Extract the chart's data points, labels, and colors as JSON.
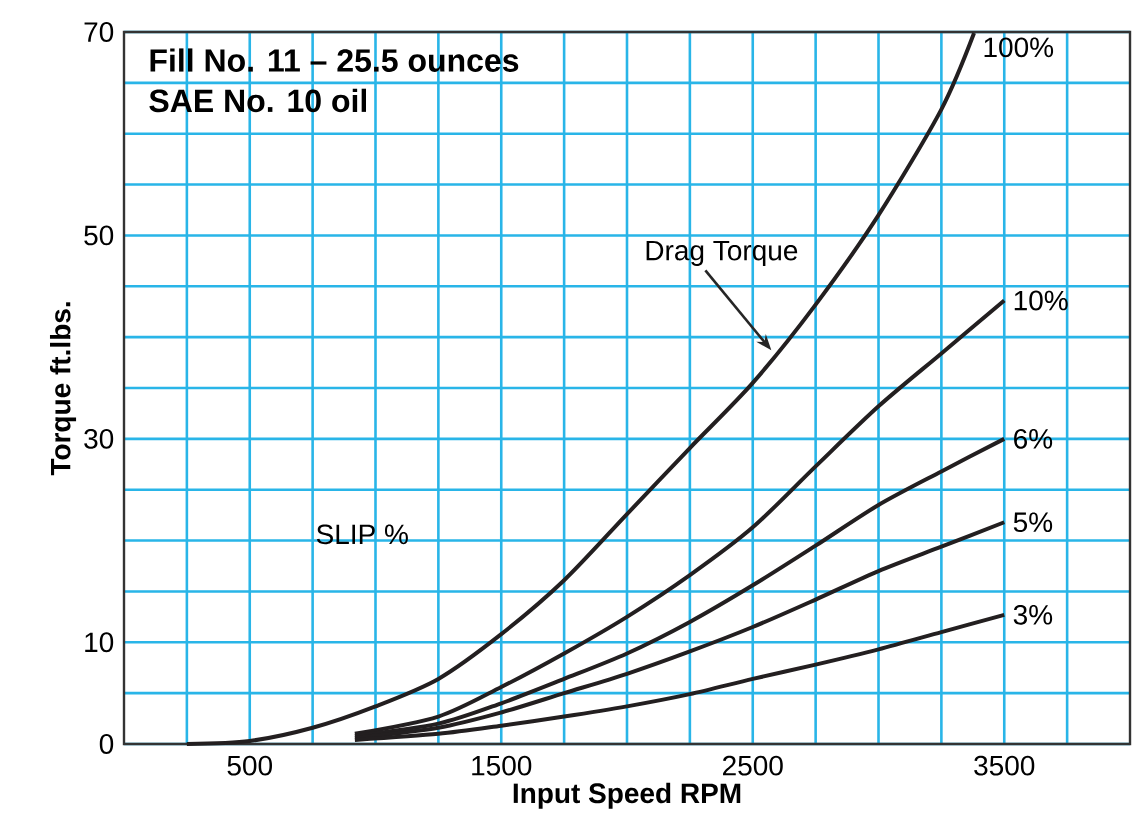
{
  "chart_data": {
    "type": "line",
    "title": "Fill No. 11 – 25.5 ounces",
    "subtitle": "SAE No. 10 oil",
    "xlabel": "Input Speed RPM",
    "ylabel": "Torque ft.lbs.",
    "xlim": [
      0,
      4000
    ],
    "ylim": [
      0,
      70
    ],
    "xticks": [
      {
        "value": 250,
        "label": null
      },
      500,
      {
        "value": 750,
        "label": null
      },
      {
        "value": 1000,
        "label": null
      },
      {
        "value": 1250,
        "label": null
      },
      1500,
      {
        "value": 1750,
        "label": null
      },
      {
        "value": 2000,
        "label": null
      },
      {
        "value": 2250,
        "label": null
      },
      2500,
      {
        "value": 2750,
        "label": null
      },
      {
        "value": 3000,
        "label": null
      },
      {
        "value": 3250,
        "label": null
      },
      3500,
      {
        "value": 3750,
        "label": null
      }
    ],
    "yticks": [
      0,
      {
        "value": 5,
        "label": null
      },
      10,
      {
        "value": 15,
        "label": null
      },
      {
        "value": 20,
        "label": null
      },
      {
        "value": 25,
        "label": null
      },
      30,
      {
        "value": 35,
        "label": null
      },
      {
        "value": 40,
        "label": null
      },
      {
        "value": 45,
        "label": null
      },
      50,
      {
        "value": 55,
        "label": null
      },
      {
        "value": 60,
        "label": null
      },
      {
        "value": 65,
        "label": null
      },
      70
    ],
    "grid": true,
    "series": [
      {
        "name": "100%",
        "color": "#231f20",
        "x": [
          250,
          500,
          750,
          1000,
          1250,
          1500,
          1750,
          2000,
          2250,
          2500,
          2750,
          3000,
          3250,
          3380
        ],
        "values": [
          0,
          0.3,
          1.6,
          3.7,
          6.4,
          10.8,
          16.1,
          22.6,
          29.1,
          35.5,
          43.2,
          52.0,
          62.4,
          69.9
        ]
      },
      {
        "name": "10%",
        "color": "#231f20",
        "x": [
          918,
          1250,
          1500,
          1750,
          2000,
          2250,
          2500,
          2750,
          3000,
          3250,
          3500
        ],
        "values": [
          1.0,
          2.7,
          5.6,
          8.9,
          12.5,
          16.6,
          21.3,
          27.3,
          33.2,
          38.4,
          43.6
        ]
      },
      {
        "name": "6%",
        "color": "#231f20",
        "x": [
          918,
          1250,
          1500,
          1750,
          2000,
          2250,
          2500,
          2750,
          3000,
          3250,
          3500
        ],
        "values": [
          0.8,
          2.0,
          4.0,
          6.4,
          8.9,
          12.0,
          15.6,
          19.5,
          23.5,
          26.8,
          30.0
        ]
      },
      {
        "name": "5%",
        "color": "#231f20",
        "x": [
          918,
          1250,
          1500,
          1750,
          2000,
          2250,
          2500,
          2750,
          3000,
          3250,
          3500
        ],
        "values": [
          0.6,
          1.6,
          3.1,
          5.0,
          6.9,
          9.1,
          11.5,
          14.2,
          17.0,
          19.4,
          21.8
        ]
      },
      {
        "name": "3%",
        "color": "#231f20",
        "x": [
          918,
          1250,
          1500,
          1750,
          2000,
          2250,
          2500,
          2750,
          3000,
          3250,
          3500
        ],
        "values": [
          0.4,
          1.0,
          1.8,
          2.7,
          3.7,
          4.9,
          6.4,
          7.8,
          9.3,
          11.0,
          12.7
        ]
      }
    ],
    "annotations": [
      {
        "text": "Drag Torque",
        "x": 2574,
        "y": 38.7
      },
      "SLIP %"
    ]
  }
}
